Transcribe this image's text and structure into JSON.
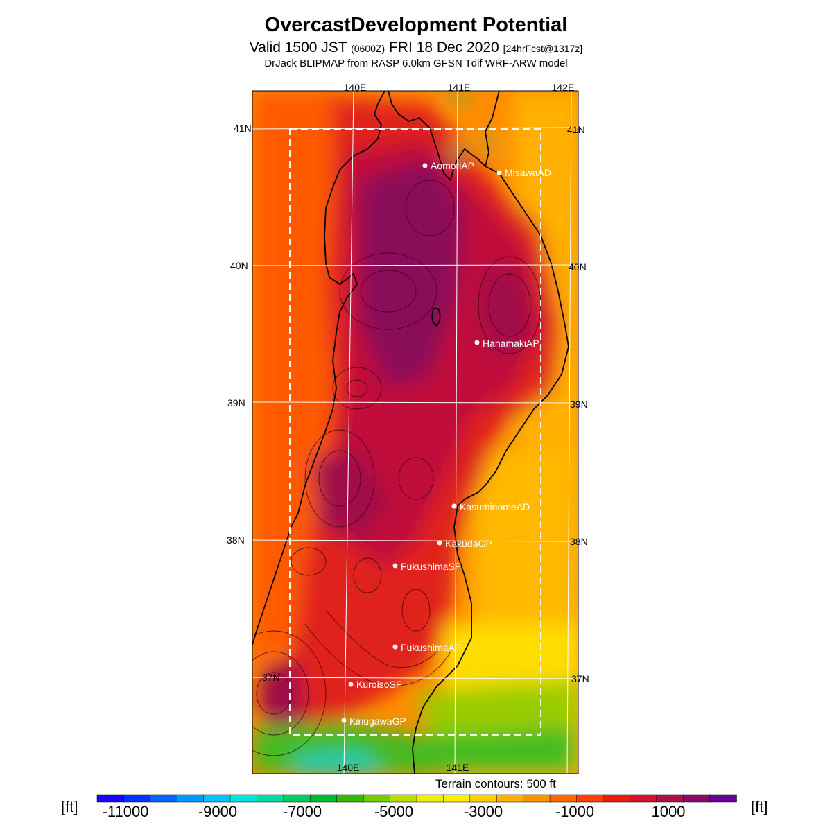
{
  "header": {
    "title": "OvercastDevelopment Potential",
    "valid_main": "Valid 1500 JST",
    "valid_utc": "(0600Z)",
    "valid_date": "FRI 18 Dec 2020",
    "forecast": "[24hrFcst@1317z]",
    "model": "DrJack BLIPMAP from RASP 6.0km GFSN Tdif WRF-ARW model"
  },
  "map": {
    "lon_labels_top": [
      "140E",
      "141E",
      "142E"
    ],
    "lon_labels_bottom": [
      "140E",
      "141E"
    ],
    "lat_labels": [
      "41N",
      "40N",
      "39N",
      "38N",
      "37N"
    ],
    "stations": [
      {
        "name": "AomoriAP"
      },
      {
        "name": "MisawaAD"
      },
      {
        "name": "HanamakiAP"
      },
      {
        "name": "KasuminomeAD"
      },
      {
        "name": "KakudaGP"
      },
      {
        "name": "FukushimaSP"
      },
      {
        "name": "FukushimaAP"
      },
      {
        "name": "KuroisoSF"
      },
      {
        "name": "KinugawaGP"
      }
    ],
    "terrain_note": "Terrain contours: 500 ft"
  },
  "legend": {
    "unit_left": "[ft]",
    "unit_right": "[ft]",
    "tick_labels": [
      "-11000",
      "-9000",
      "-7000",
      "-5000",
      "-3000",
      "-1000",
      "1000"
    ],
    "colors": [
      "#1a00ff",
      "#0033ff",
      "#0066ff",
      "#0099ff",
      "#00c3ff",
      "#00e5e0",
      "#00dca0",
      "#00cc60",
      "#00bb30",
      "#33bb00",
      "#77cc00",
      "#bbdd00",
      "#eeee00",
      "#ffee00",
      "#ffd000",
      "#ffb000",
      "#ff9000",
      "#ff6800",
      "#ff4000",
      "#ee1a10",
      "#d4102a",
      "#b00f48",
      "#8a0a6a",
      "#660099"
    ]
  },
  "colors": {
    "ocean_warm": "#ff8a00",
    "land_hot": "#d4102a",
    "peak": "#8a0a6a"
  }
}
